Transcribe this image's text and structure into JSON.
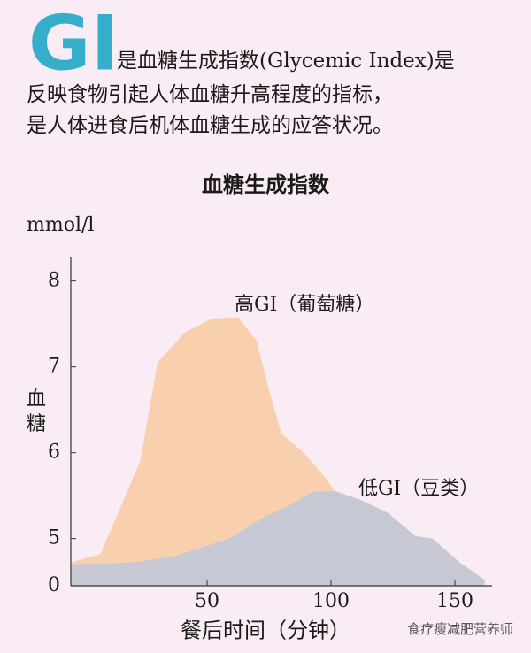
{
  "header": {
    "logo": "GI",
    "lines": [
      "是血糖生成指数(Glycemic Index)是",
      "反映食物引起人体血糖升高程度的指标，",
      "是人体进食后机体血糖生成的应答状况。"
    ]
  },
  "watermark": "食疗瘦减肥营养师",
  "chart_data": {
    "type": "area",
    "title": "血糖生成指数",
    "y_unit": "mmol/l",
    "ylabel_chars": [
      "血",
      "糖"
    ],
    "xlabel": "餐后时间（分钟）",
    "xlim": [
      -5,
      165
    ],
    "xticks": [
      50,
      100,
      150
    ],
    "ylim": [
      0,
      8.5
    ],
    "yticks": [
      0,
      5,
      6,
      7,
      8
    ],
    "y_axis_break": [
      0,
      4.45
    ],
    "series": [
      {
        "name": "高GI（葡萄糖）",
        "color": "#f9d0ae",
        "x": [
          -5,
          7,
          23,
          30,
          41,
          52,
          62.5,
          70,
          75,
          80,
          89,
          98,
          105,
          112,
          120
        ],
        "values": [
          4.72,
          4.82,
          5.9,
          7.05,
          7.4,
          7.56,
          7.58,
          7.3,
          6.73,
          6.22,
          6.0,
          5.7,
          5.4,
          5.2,
          4.88
        ]
      },
      {
        "name": "低GI（豆类）",
        "color": "#c6c9d4",
        "x": [
          -5,
          20,
          37.5,
          59,
          73,
          84,
          93,
          102,
          112,
          123,
          134,
          141,
          152,
          162
        ],
        "values": [
          4.7,
          4.72,
          4.8,
          5.0,
          5.25,
          5.4,
          5.55,
          5.55,
          5.45,
          5.3,
          5.03,
          5.0,
          4.72,
          4.52
        ]
      }
    ]
  }
}
